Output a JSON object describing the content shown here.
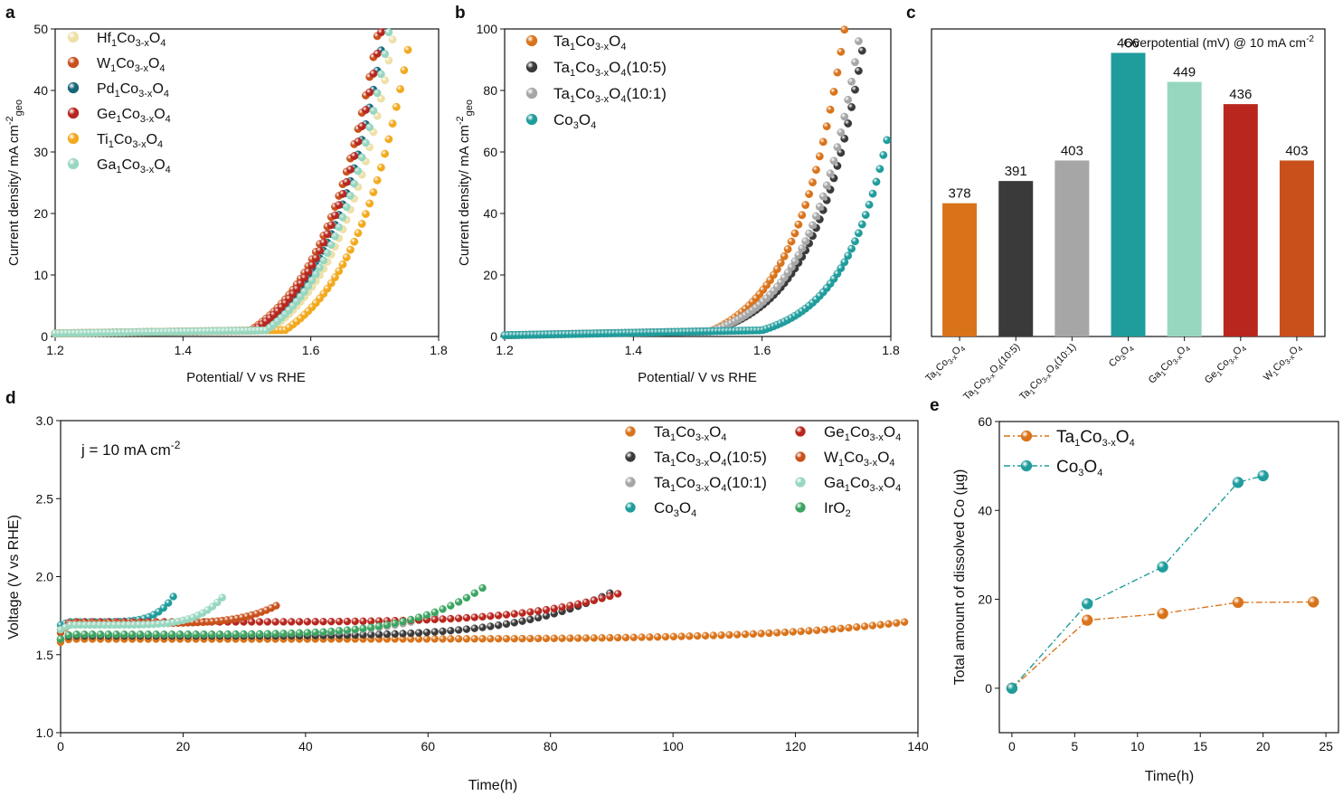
{
  "colors": {
    "ta": "#d9731a",
    "ta105": "#3a3a3a",
    "ta101": "#a6a6a6",
    "co3o4": "#1f9c9c",
    "hf": "#eee0a8",
    "w": "#c9501b",
    "pd": "#17657a",
    "ge": "#b8261e",
    "ti": "#f2a91e",
    "ga": "#97d7c0",
    "iro2": "#3aa560"
  },
  "chart_data": [
    {
      "panel": "a",
      "type": "scatter",
      "xlabel": "Potential/ V vs RHE",
      "ylabel": "Current density/ mA cm-2geo",
      "xlim": [
        1.2,
        1.8
      ],
      "ylim": [
        0,
        50
      ],
      "xticks": [
        "1.2",
        "1.4",
        "1.6",
        "1.8"
      ],
      "yticks": [
        "0",
        "10",
        "20",
        "30",
        "40",
        "50"
      ],
      "legend_position": "top-left",
      "series": [
        {
          "key": "hf",
          "name": "Hf1Co3-xO4",
          "label": {
            "pre": "Hf",
            "s1": "1",
            "mid": "Co",
            "s2": "3-x",
            "post": "O",
            "s3": "4"
          },
          "onset": 1.535,
          "x50": 1.733
        },
        {
          "key": "w",
          "name": "W1Co3-xO4",
          "label": {
            "pre": "W",
            "s1": "1",
            "mid": "Co",
            "s2": "3-x",
            "post": "O",
            "s3": "4"
          },
          "onset": 1.505,
          "x50": 1.708
        },
        {
          "key": "pd",
          "name": "Pd1Co3-xO4",
          "label": {
            "pre": "Pd",
            "s1": "1",
            "mid": "Co",
            "s2": "3-x",
            "post": "O",
            "s3": "4"
          },
          "onset": 1.52,
          "x50": 1.718
        },
        {
          "key": "ge",
          "name": "Ge1Co3-xO4",
          "label": {
            "pre": "Ge",
            "s1": "1",
            "mid": "Co",
            "s2": "3-x",
            "post": "O",
            "s3": "4"
          },
          "onset": 1.51,
          "x50": 1.713
        },
        {
          "key": "ti",
          "name": "Ti1Co3-xO4",
          "label": {
            "pre": "Ti",
            "s1": "1",
            "mid": "Co",
            "s2": "3-x",
            "post": "O",
            "s3": "4"
          },
          "onset": 1.56,
          "x50": 1.76
        },
        {
          "key": "ga",
          "name": "Ga1Co3-xO4",
          "label": {
            "pre": "Ga",
            "s1": "1",
            "mid": "Co",
            "s2": "3-x",
            "post": "O",
            "s3": "4"
          },
          "onset": 1.53,
          "x50": 1.725
        }
      ]
    },
    {
      "panel": "b",
      "type": "scatter",
      "xlabel": "Potential/ V vs RHE",
      "ylabel": "Current density/ mA cm-2geo",
      "xlim": [
        1.2,
        1.8
      ],
      "ylim": [
        0,
        100
      ],
      "xticks": [
        "1.2",
        "1.4",
        "1.6",
        "1.8"
      ],
      "yticks": [
        "0",
        "20",
        "40",
        "60",
        "80",
        "100"
      ],
      "legend_position": "top-left",
      "series": [
        {
          "key": "ta",
          "name": "Ta1Co3-xO4",
          "label": {
            "pre": "Ta",
            "s1": "1",
            "mid": "Co",
            "s2": "3-x",
            "post": "O",
            "s3": "4",
            "tail": ""
          },
          "onset": 1.52,
          "xend": 1.73,
          "yend": 100
        },
        {
          "key": "ta105",
          "name": "Ta1Co3-xO4(10:5)",
          "label": {
            "pre": "Ta",
            "s1": "1",
            "mid": "Co",
            "s2": "3-x",
            "post": "O",
            "s3": "4",
            "tail": "(10:5)"
          },
          "onset": 1.52,
          "xend": 1.76,
          "yend": 96
        },
        {
          "key": "ta101",
          "name": "Ta1Co3-xO4(10:1)",
          "label": {
            "pre": "Ta",
            "s1": "1",
            "mid": "Co",
            "s2": "3-x",
            "post": "O",
            "s3": "4",
            "tail": "(10:1)"
          },
          "onset": 1.52,
          "xend": 1.752,
          "yend": 96
        },
        {
          "key": "co3o4",
          "name": "Co3O4",
          "label": {
            "pre": "Co",
            "s1": "3",
            "mid": "O",
            "s2": "4",
            "post": "",
            "s3": "",
            "tail": ""
          },
          "onset": 1.6,
          "xend": 1.795,
          "yend": 62
        }
      ]
    },
    {
      "panel": "c",
      "type": "bar",
      "title": "Overpotential (mV) @ 10 mA cm-2",
      "ylim": [
        300,
        480
      ],
      "categories": [
        "Ta1Co3-xO4",
        "Ta1Co3-xO4(10:5)",
        "Ta1Co3-xO4(10:1)",
        "Co3O4",
        "Ga1Co3-xO4",
        "Ge1Co3-xO4",
        "W1Co3-xO4"
      ],
      "values": [
        378,
        391,
        403,
        466,
        449,
        436,
        403
      ],
      "bar_colors": [
        "ta",
        "ta105",
        "ta101",
        "co3o4",
        "ga",
        "ge",
        "w"
      ]
    },
    {
      "panel": "d",
      "type": "scatter",
      "xlabel": "Time(h)",
      "ylabel": "Voltage (V vs RHE)",
      "xlim": [
        0,
        140
      ],
      "ylim": [
        1.0,
        3.0
      ],
      "xticks": [
        "0",
        "20",
        "40",
        "60",
        "80",
        "100",
        "120",
        "140"
      ],
      "yticks": [
        "1.0",
        "1.5",
        "2.0",
        "2.5",
        "3.0"
      ],
      "annotation": "j = 10 mA cm-2",
      "legend_position": "top-right",
      "series": [
        {
          "key": "ta",
          "name": "Ta1Co3-xO4",
          "v0": 1.58,
          "vflat": 1.6,
          "tend": 138,
          "vend": 1.71
        },
        {
          "key": "ta105",
          "name": "Ta1Co3-xO4(10:5)",
          "v0": 1.6,
          "vflat": 1.62,
          "tend": 90,
          "vend": 1.9
        },
        {
          "key": "ta101",
          "name": "Ta1Co3-xO4(10:1)",
          "v0": 1.6,
          "vflat": 1.63,
          "tend": 62,
          "vend": 1.76
        },
        {
          "key": "co3o4",
          "name": "Co3O4",
          "v0": 1.69,
          "vflat": 1.71,
          "tend": 19,
          "vend": 1.91
        },
        {
          "key": "ge",
          "name": "Ge1Co3-xO4",
          "v0": 1.66,
          "vflat": 1.71,
          "tend": 91,
          "vend": 1.89
        },
        {
          "key": "w",
          "name": "W1Co3-xO4",
          "v0": 1.64,
          "vflat": 1.7,
          "tend": 35.5,
          "vend": 1.82
        },
        {
          "key": "ga",
          "name": "Ga1Co3-xO4",
          "v0": 1.66,
          "vflat": 1.69,
          "tend": 26.5,
          "vend": 1.87
        },
        {
          "key": "iro2",
          "name": "IrO2",
          "v0": 1.6,
          "vflat": 1.63,
          "tend": 69,
          "vend": 1.93
        }
      ]
    },
    {
      "panel": "e",
      "type": "line",
      "xlabel": "Time(h)",
      "ylabel": "Total amount of dissolved Co (µg)",
      "xlim": [
        -1,
        26
      ],
      "ylim": [
        -10,
        60
      ],
      "xticks": [
        "0",
        "5",
        "10",
        "15",
        "20",
        "25"
      ],
      "yticks": [
        "0",
        "20",
        "40",
        "60"
      ],
      "legend_position": "top-left",
      "series": [
        {
          "key": "ta",
          "name": "Ta1Co3-xO4",
          "x": [
            0,
            6,
            12,
            18,
            24
          ],
          "y": [
            0,
            15.3,
            16.8,
            19.3,
            19.4
          ]
        },
        {
          "key": "co3o4",
          "name": "Co3O4",
          "x": [
            0,
            6,
            12,
            18,
            20
          ],
          "y": [
            0,
            19,
            27.3,
            46.3,
            47.8
          ]
        }
      ]
    }
  ],
  "panel_labels": {
    "a": "a",
    "b": "b",
    "c": "c",
    "d": "d",
    "e": "e"
  }
}
